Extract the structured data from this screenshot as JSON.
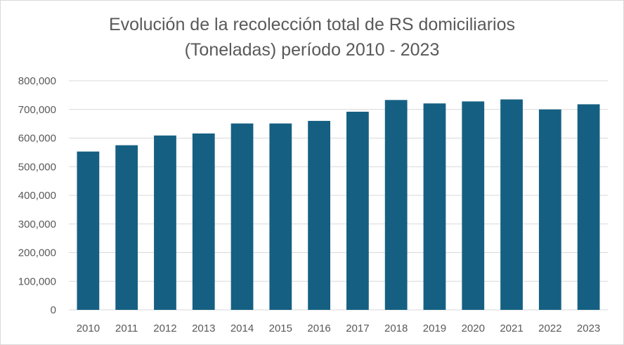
{
  "chart_data": {
    "type": "bar",
    "title_line1": "Evolución de la recolección total de RS domiciliarios",
    "title_line2": "(Toneladas) período 2010 - 2023",
    "categories": [
      "2010",
      "2011",
      "2012",
      "2013",
      "2014",
      "2015",
      "2016",
      "2017",
      "2018",
      "2019",
      "2020",
      "2021",
      "2022",
      "2023"
    ],
    "values": [
      553000,
      575000,
      609000,
      616000,
      651000,
      651000,
      660000,
      692000,
      733000,
      721000,
      728000,
      735000,
      700000,
      718000
    ],
    "ylim": [
      0,
      800000
    ],
    "yticks": [
      0,
      100000,
      200000,
      300000,
      400000,
      500000,
      600000,
      700000,
      800000
    ],
    "ytick_labels": [
      "0",
      "100,000",
      "200,000",
      "300,000",
      "400,000",
      "500,000",
      "600,000",
      "700,000",
      "800,000"
    ],
    "xlabel": "",
    "ylabel": "",
    "grid": true,
    "legend": "none",
    "bar_color": "#156082",
    "grid_color": "#d9d9d9"
  }
}
